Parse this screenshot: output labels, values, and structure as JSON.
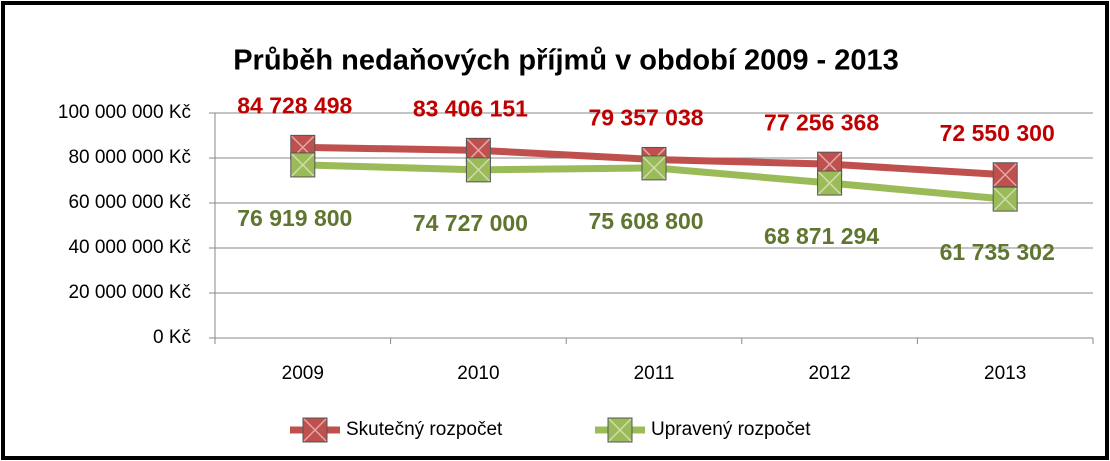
{
  "chart_data": {
    "type": "line",
    "title": "Průběh nedaňových příjmů v období 2009 - 2013",
    "categories": [
      "2009",
      "2010",
      "2011",
      "2012",
      "2013"
    ],
    "series": [
      {
        "name": "Skutečný rozpočet",
        "color": "#c0504d",
        "label_color": "#c00000",
        "values": [
          84728498,
          83406151,
          79357038,
          77256368,
          72550300
        ],
        "value_labels": [
          "84 728 498",
          "83 406 151",
          "79 357 038",
          "77 256 368",
          "72 550 300"
        ]
      },
      {
        "name": "Upravený rozpočet",
        "color": "#9bbb59",
        "label_color": "#5f7530",
        "values": [
          76919800,
          74727000,
          75608800,
          68871294,
          61735302
        ],
        "value_labels": [
          "76 919 800",
          "74 727 000",
          "75 608 800",
          "68 871 294",
          "61 735 302"
        ]
      }
    ],
    "ylim": [
      0,
      100000000
    ],
    "yticks": [
      {
        "value": 0,
        "label": "0 Kč"
      },
      {
        "value": 20000000,
        "label": "20 000 000 Kč"
      },
      {
        "value": 40000000,
        "label": "40 000 000 Kč"
      },
      {
        "value": 60000000,
        "label": "60 000 000 Kč"
      },
      {
        "value": 80000000,
        "label": "80 000 000 Kč"
      },
      {
        "value": 100000000,
        "label": "100 000 000 Kč"
      }
    ],
    "grid": true,
    "legend": "bottom"
  }
}
